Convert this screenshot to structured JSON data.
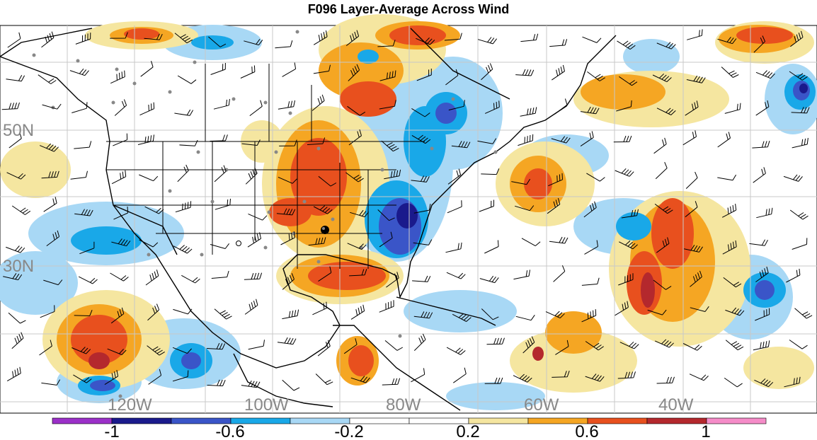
{
  "title": "F096 Layer-Average Across Wind",
  "lat_labels": [
    {
      "text": "50N"
    },
    {
      "text": "30N"
    }
  ],
  "lon_labels": [
    {
      "text": "120W"
    },
    {
      "text": "100W"
    },
    {
      "text": "80W"
    },
    {
      "text": "60W"
    },
    {
      "text": "40W"
    }
  ],
  "colorbar": {
    "colors": [
      "#9b30c8",
      "#1a1a8c",
      "#3a55c8",
      "#19a8e8",
      "#a8d8f5",
      "#ffffff",
      "#ffffff",
      "#f5e6a0",
      "#f5a623",
      "#e8501e",
      "#b4282d",
      "#f58cc8"
    ],
    "labels": [
      "-1",
      "-0.6",
      "-0.2",
      "0.2",
      "0.6",
      "1"
    ]
  },
  "palette": {
    "deep_blue": "#1a1a8c",
    "mid_blue": "#3a55c8",
    "cyan": "#19a8e8",
    "light_blue": "#a8d8f5",
    "light_yellow": "#f5e6a0",
    "orange": "#f5a623",
    "red_orange": "#e8501e",
    "dark_red": "#b4282d",
    "grid": "#c8c8c8",
    "coast": "#000000",
    "station_dot": "#888888"
  }
}
